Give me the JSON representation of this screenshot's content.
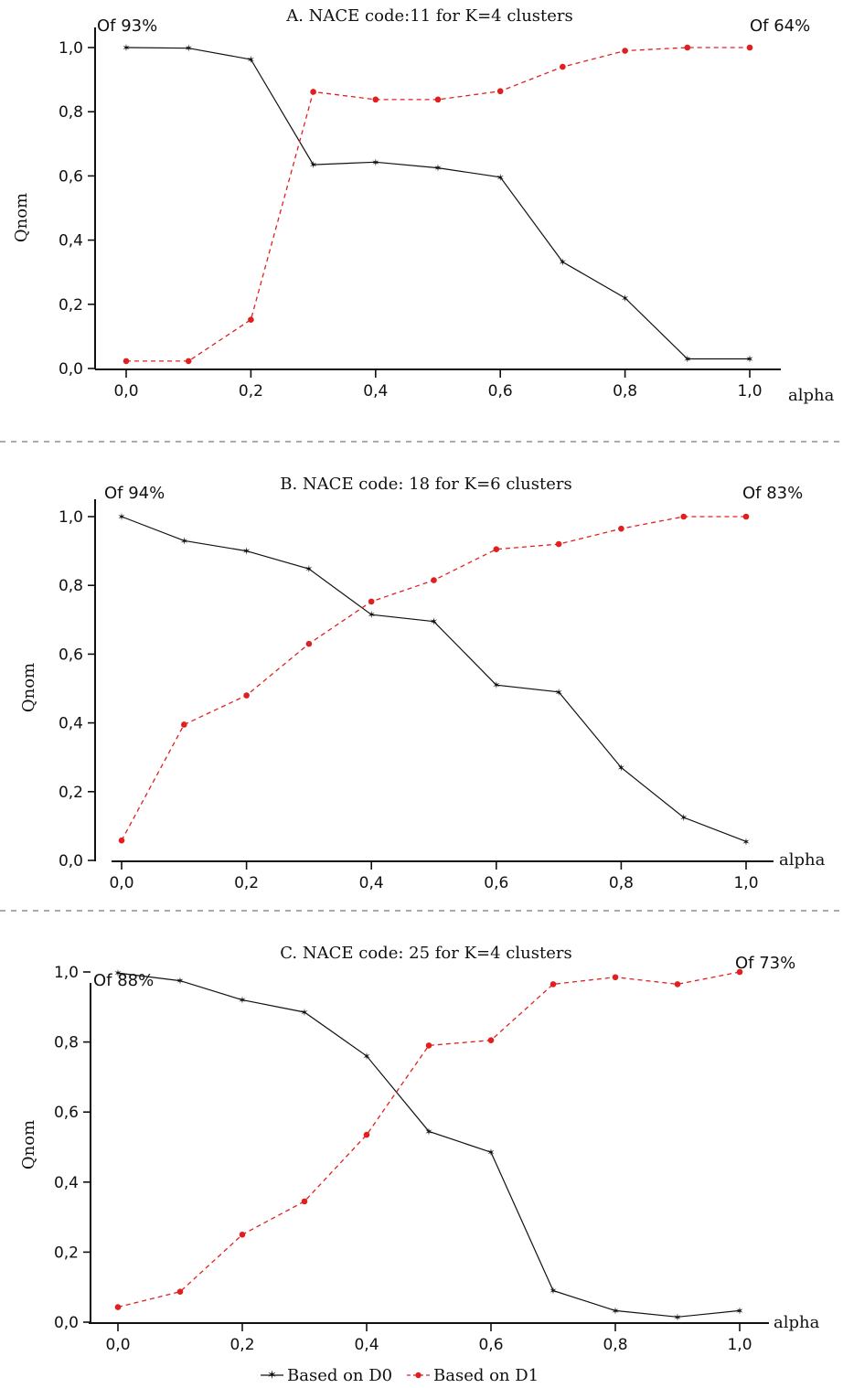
{
  "chart_data": [
    {
      "type": "line",
      "title": "A. NACE code:11 for K=4 clusters",
      "corner_left": "Of 93%",
      "corner_right": "Of 64%",
      "xlabel": "alpha",
      "ylabel": "Qnom",
      "x": [
        0.0,
        0.1,
        0.2,
        0.3,
        0.4,
        0.5,
        0.6,
        0.7,
        0.8,
        0.9,
        1.0
      ],
      "x_ticks": [
        "0,0",
        "0,2",
        "0,4",
        "0,6",
        "0,8",
        "1,0"
      ],
      "y_ticks": [
        "0,0",
        "0,2",
        "0,4",
        "0,6",
        "0,8",
        "1,0"
      ],
      "xlim": [
        0,
        1
      ],
      "ylim": [
        0,
        1
      ],
      "series": [
        {
          "name": "Based on D0",
          "color": "#111111",
          "style": "solid",
          "marker": "star",
          "values": [
            1.0,
            0.998,
            0.963,
            0.635,
            0.643,
            0.625,
            0.596,
            0.332,
            0.22,
            0.03,
            0.03
          ]
        },
        {
          "name": "Based on D1",
          "color": "#e02020",
          "style": "dashed",
          "marker": "dot",
          "values": [
            0.023,
            0.023,
            0.152,
            0.862,
            0.838,
            0.838,
            0.864,
            0.94,
            0.99,
            1.0,
            1.0
          ]
        }
      ]
    },
    {
      "type": "line",
      "title": "B. NACE code: 18 for K=6 clusters",
      "corner_left": "Of 94%",
      "corner_right": "Of 83%",
      "xlabel": "alpha",
      "ylabel": "Qnom",
      "x": [
        0.0,
        0.1,
        0.2,
        0.3,
        0.4,
        0.5,
        0.6,
        0.7,
        0.8,
        0.9,
        1.0
      ],
      "x_ticks": [
        "0,0",
        "0,2",
        "0,4",
        "0,6",
        "0,8",
        "1,0"
      ],
      "y_ticks": [
        "0,0",
        "0,2",
        "0,4",
        "0,6",
        "0,8",
        "1,0"
      ],
      "xlim": [
        0,
        1
      ],
      "ylim": [
        0,
        1
      ],
      "series": [
        {
          "name": "Based on D0",
          "color": "#111111",
          "style": "solid",
          "marker": "star",
          "values": [
            1.0,
            0.93,
            0.9,
            0.848,
            0.715,
            0.695,
            0.51,
            0.49,
            0.27,
            0.125,
            0.055
          ]
        },
        {
          "name": "Based on D1",
          "color": "#e02020",
          "style": "dashed",
          "marker": "dot",
          "values": [
            0.058,
            0.395,
            0.48,
            0.63,
            0.753,
            0.815,
            0.905,
            0.92,
            0.965,
            1.0,
            1.0
          ]
        }
      ]
    },
    {
      "type": "line",
      "title": "C. NACE code: 25 for K=4 clusters",
      "corner_left": "Of 88%",
      "corner_right": "Of 73%",
      "xlabel": "alpha",
      "ylabel": "Qnom",
      "x": [
        0.0,
        0.1,
        0.2,
        0.3,
        0.4,
        0.5,
        0.6,
        0.7,
        0.8,
        0.9,
        1.0
      ],
      "x_ticks": [
        "0,0",
        "0,2",
        "0,4",
        "0,6",
        "0,8",
        "1,0"
      ],
      "y_ticks": [
        "0,0",
        "0,2",
        "0,4",
        "0,6",
        "0,8",
        "1,0"
      ],
      "xlim": [
        0,
        1
      ],
      "ylim": [
        0,
        1
      ],
      "series": [
        {
          "name": "Based on D0",
          "color": "#111111",
          "style": "solid",
          "marker": "star",
          "values": [
            0.997,
            0.975,
            0.92,
            0.885,
            0.76,
            0.545,
            0.485,
            0.09,
            0.033,
            0.015,
            0.033
          ]
        },
        {
          "name": "Based on D1",
          "color": "#e02020",
          "style": "dashed",
          "marker": "dot",
          "values": [
            0.043,
            0.087,
            0.25,
            0.345,
            0.535,
            0.79,
            0.805,
            0.965,
            0.985,
            0.965,
            1.0
          ]
        }
      ]
    }
  ],
  "legend": {
    "entries": [
      {
        "label": "Based on D0",
        "color": "#111111",
        "style": "solid",
        "marker": "star"
      },
      {
        "label": "Based on D1",
        "color": "#e02020",
        "style": "dashed",
        "marker": "dot"
      }
    ]
  }
}
